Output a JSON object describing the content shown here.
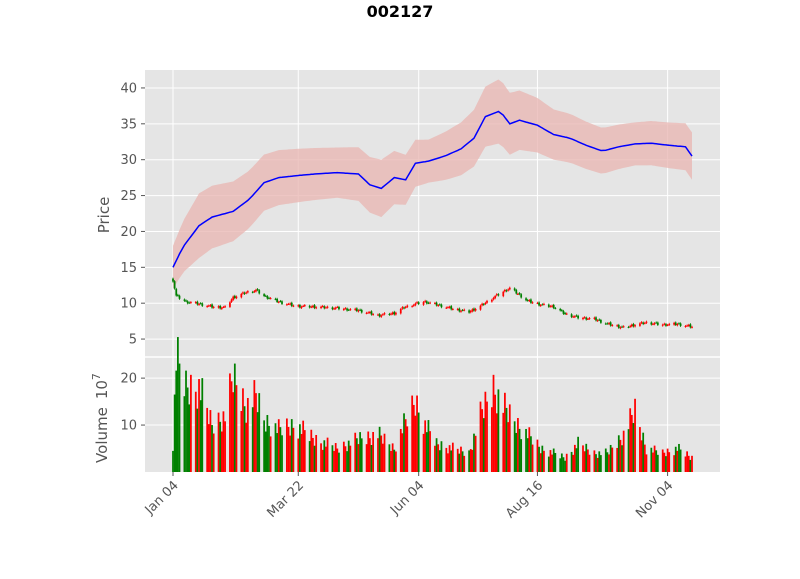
{
  "chart_data": [
    {
      "type": "candlestick",
      "title": "002127",
      "ylabel": "Price",
      "ylim": [
        2.5,
        42.5
      ],
      "y_ticks": [
        5,
        10,
        15,
        20,
        25,
        30,
        35,
        40
      ],
      "grid": true,
      "colors": {
        "up": "#ff0000",
        "down": "#008000",
        "ma_line": "#0000ff",
        "band_fill": "#e8b4b0",
        "background": "#e5e5e5"
      },
      "x_tick_labels": [
        "Jan 04",
        "Mar 22",
        "Jun 04",
        "Aug 16",
        "Nov 04"
      ],
      "x_tick_dates": [
        "2021-01-04",
        "2021-03-22",
        "2021-06-04",
        "2021-08-16",
        "2021-11-04"
      ],
      "date_range": [
        "2021-01-04",
        "2021-11-19"
      ],
      "close_anchors": [
        [
          "2021-01-04",
          13.2
        ],
        [
          "2021-01-06",
          11.0
        ],
        [
          "2021-01-12",
          10.2
        ],
        [
          "2021-01-20",
          9.9
        ],
        [
          "2021-01-28",
          9.5
        ],
        [
          "2021-02-05",
          9.4
        ],
        [
          "2021-02-10",
          10.8
        ],
        [
          "2021-02-18",
          11.5
        ],
        [
          "2021-02-24",
          11.8
        ],
        [
          "2021-03-01",
          11.0
        ],
        [
          "2021-03-10",
          10.2
        ],
        [
          "2021-03-20",
          9.6
        ],
        [
          "2021-04-01",
          9.5
        ],
        [
          "2021-04-15",
          9.3
        ],
        [
          "2021-04-28",
          9.0
        ],
        [
          "2021-05-10",
          8.3
        ],
        [
          "2021-05-20",
          8.6
        ],
        [
          "2021-05-26",
          9.4
        ],
        [
          "2021-06-02",
          9.9
        ],
        [
          "2021-06-08",
          10.2
        ],
        [
          "2021-06-15",
          9.8
        ],
        [
          "2021-06-25",
          9.2
        ],
        [
          "2021-07-05",
          8.8
        ],
        [
          "2021-07-12",
          9.6
        ],
        [
          "2021-07-20",
          10.8
        ],
        [
          "2021-07-26",
          11.6
        ],
        [
          "2021-07-30",
          12.1
        ],
        [
          "2021-08-04",
          11.3
        ],
        [
          "2021-08-10",
          10.3
        ],
        [
          "2021-08-18",
          9.8
        ],
        [
          "2021-08-26",
          9.5
        ],
        [
          "2021-09-02",
          8.5
        ],
        [
          "2021-09-10",
          8.0
        ],
        [
          "2021-09-20",
          7.8
        ],
        [
          "2021-09-28",
          7.1
        ],
        [
          "2021-10-08",
          6.6
        ],
        [
          "2021-10-15",
          7.0
        ],
        [
          "2021-10-22",
          7.3
        ],
        [
          "2021-11-01",
          7.0
        ],
        [
          "2021-11-10",
          7.1
        ],
        [
          "2021-11-19",
          6.7
        ]
      ],
      "moving_average": [
        [
          "2021-01-04",
          15.0
        ],
        [
          "2021-01-10",
          17.8
        ],
        [
          "2021-01-20",
          20.8
        ],
        [
          "2021-01-28",
          22.0
        ],
        [
          "2021-02-10",
          22.8
        ],
        [
          "2021-02-20",
          24.5
        ],
        [
          "2021-03-01",
          26.8
        ],
        [
          "2021-03-10",
          27.5
        ],
        [
          "2021-03-22",
          27.8
        ],
        [
          "2021-04-01",
          28.0
        ],
        [
          "2021-04-15",
          28.2
        ],
        [
          "2021-04-28",
          28.0
        ],
        [
          "2021-05-05",
          26.5
        ],
        [
          "2021-05-12",
          26.0
        ],
        [
          "2021-05-20",
          27.5
        ],
        [
          "2021-05-27",
          27.2
        ],
        [
          "2021-06-02",
          29.5
        ],
        [
          "2021-06-10",
          29.8
        ],
        [
          "2021-06-20",
          30.5
        ],
        [
          "2021-06-30",
          31.5
        ],
        [
          "2021-07-08",
          33.0
        ],
        [
          "2021-07-15",
          36.0
        ],
        [
          "2021-07-24",
          36.8
        ],
        [
          "2021-07-30",
          35.0
        ],
        [
          "2021-08-05",
          35.5
        ],
        [
          "2021-08-16",
          34.8
        ],
        [
          "2021-08-26",
          33.5
        ],
        [
          "2021-09-05",
          33.0
        ],
        [
          "2021-09-15",
          32.0
        ],
        [
          "2021-09-25",
          31.2
        ],
        [
          "2021-10-05",
          31.8
        ],
        [
          "2021-10-15",
          32.2
        ],
        [
          "2021-10-25",
          32.3
        ],
        [
          "2021-11-05",
          32.0
        ],
        [
          "2021-11-15",
          31.8
        ],
        [
          "2021-11-19",
          30.5
        ]
      ],
      "band_half_width": [
        [
          "2021-01-04",
          3.0
        ],
        [
          "2021-01-20",
          4.5
        ],
        [
          "2021-02-20",
          4.0
        ],
        [
          "2021-04-15",
          3.5
        ],
        [
          "2021-05-12",
          4.0
        ],
        [
          "2021-06-10",
          3.0
        ],
        [
          "2021-07-24",
          4.5
        ],
        [
          "2021-08-26",
          3.5
        ],
        [
          "2021-10-15",
          3.0
        ],
        [
          "2021-11-19",
          3.3
        ]
      ]
    },
    {
      "type": "bar",
      "ylabel": "Volume",
      "ylabel_multiplier": "10",
      "ylabel_multiplier_exponent": "7",
      "ylim": [
        0,
        24.5
      ],
      "y_ticks": [
        10,
        20
      ],
      "grid": true,
      "colors": {
        "up": "#ff0000",
        "down": "#008000"
      },
      "x_tick_labels": [
        "Jan 04",
        "Mar 22",
        "Jun 04",
        "Aug 16",
        "Nov 04"
      ],
      "volume_anchors": [
        [
          "2021-01-04",
          6
        ],
        [
          "2021-01-06",
          24
        ],
        [
          "2021-01-12",
          18
        ],
        [
          "2021-01-20",
          18
        ],
        [
          "2021-01-28",
          10
        ],
        [
          "2021-02-05",
          12
        ],
        [
          "2021-02-10",
          20
        ],
        [
          "2021-02-18",
          14
        ],
        [
          "2021-02-24",
          16
        ],
        [
          "2021-03-01",
          11
        ],
        [
          "2021-03-10",
          9
        ],
        [
          "2021-03-20",
          10
        ],
        [
          "2021-04-01",
          7
        ],
        [
          "2021-04-15",
          5
        ],
        [
          "2021-04-28",
          7
        ],
        [
          "2021-05-10",
          8
        ],
        [
          "2021-05-20",
          5
        ],
        [
          "2021-05-26",
          10
        ],
        [
          "2021-06-02",
          15
        ],
        [
          "2021-06-08",
          10
        ],
        [
          "2021-06-15",
          6
        ],
        [
          "2021-06-25",
          5
        ],
        [
          "2021-07-05",
          4
        ],
        [
          "2021-07-12",
          12
        ],
        [
          "2021-07-20",
          18
        ],
        [
          "2021-07-26",
          14
        ],
        [
          "2021-07-30",
          12
        ],
        [
          "2021-08-04",
          10
        ],
        [
          "2021-08-10",
          8
        ],
        [
          "2021-08-18",
          5
        ],
        [
          "2021-08-26",
          4
        ],
        [
          "2021-09-02",
          3
        ],
        [
          "2021-09-10",
          6
        ],
        [
          "2021-09-20",
          4
        ],
        [
          "2021-09-28",
          4
        ],
        [
          "2021-10-08",
          8
        ],
        [
          "2021-10-15",
          13
        ],
        [
          "2021-10-22",
          5
        ],
        [
          "2021-11-01",
          4
        ],
        [
          "2021-11-10",
          5
        ],
        [
          "2021-11-19",
          3
        ]
      ]
    }
  ]
}
